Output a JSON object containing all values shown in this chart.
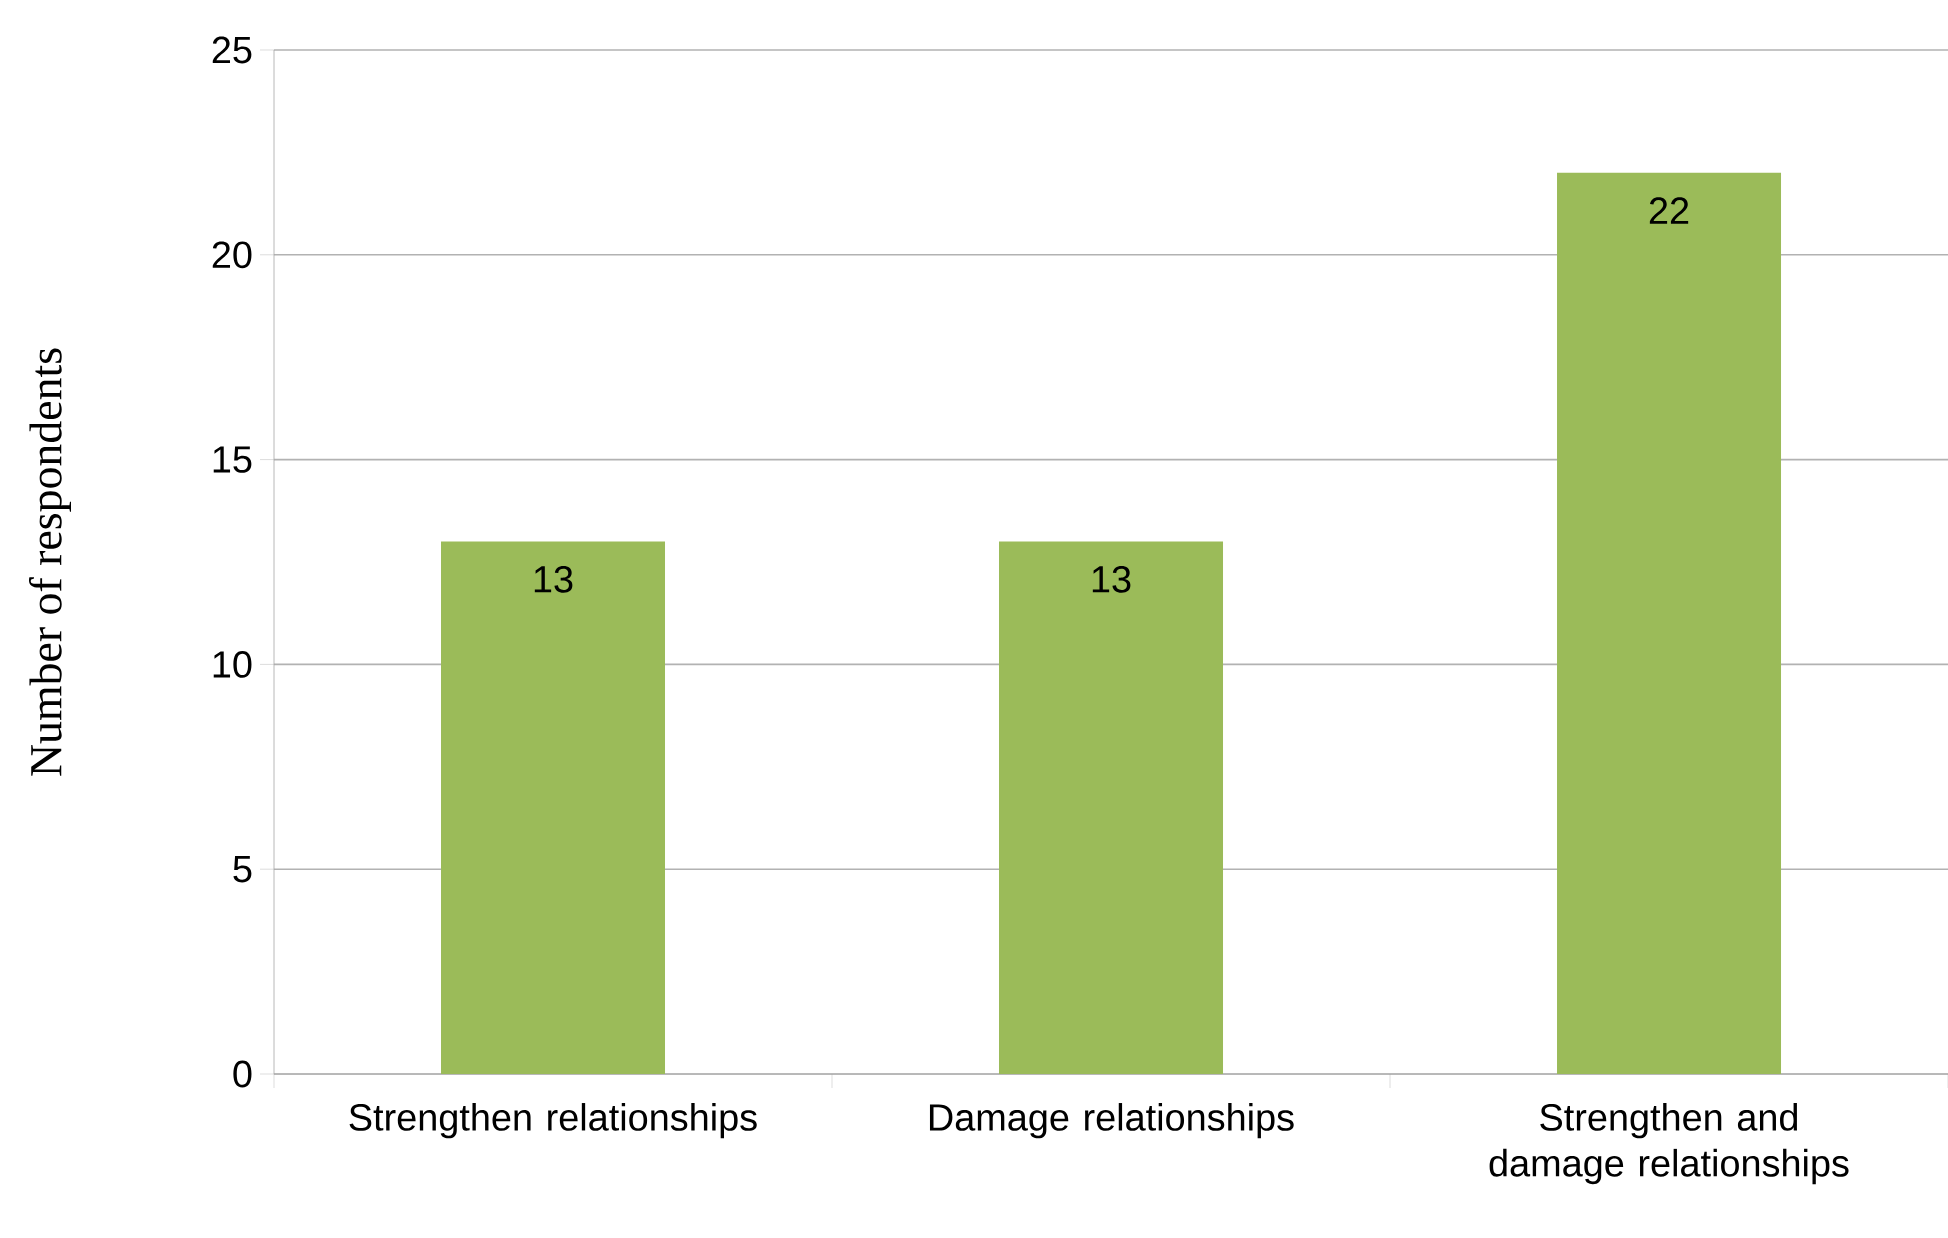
{
  "chart_data": {
    "type": "bar",
    "ylabel": "Number of respondents",
    "categories": [
      "Strengthen relationships",
      "Damage relationships",
      "Strengthen and damage relationships"
    ],
    "values": [
      13,
      13,
      22
    ],
    "color": "#9bbb59",
    "ylim": [
      0,
      25
    ],
    "yticks": [
      0,
      5,
      10,
      15,
      20,
      25
    ],
    "grid": "y",
    "data_labels": true
  }
}
